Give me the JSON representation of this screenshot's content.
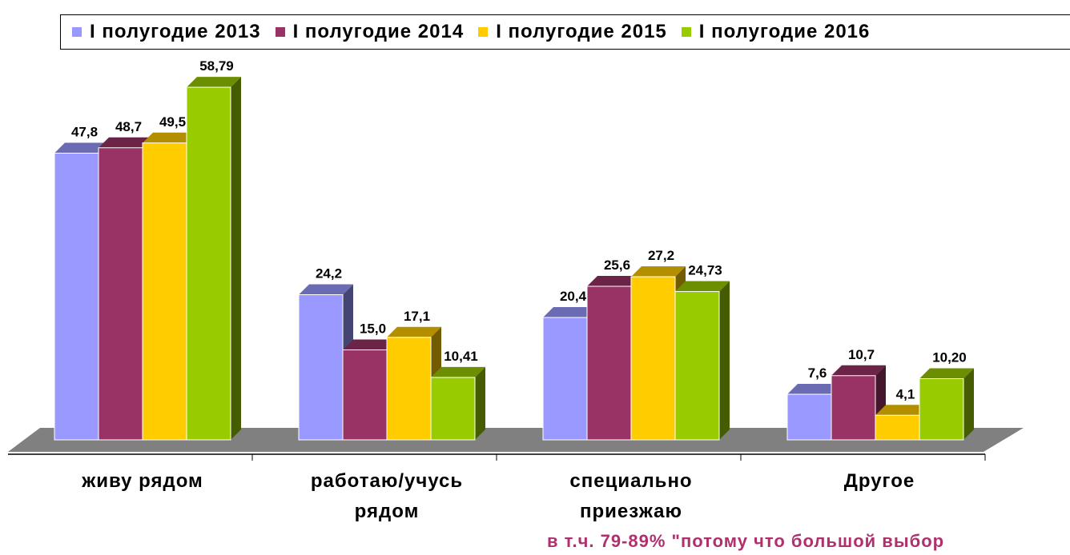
{
  "chart_data": {
    "type": "bar",
    "categories": [
      "живу рядом",
      "работаю/учусь рядом",
      "специально приезжаю",
      "Другое"
    ],
    "series": [
      {
        "name": "I полугодие 2013",
        "color": "#9999ff",
        "values": [
          47.8,
          24.2,
          20.4,
          7.6
        ],
        "value_labels": [
          "47,8",
          "24,2",
          "20,4",
          "7,6"
        ]
      },
      {
        "name": "I полугодие 2014",
        "color": "#993366",
        "values": [
          48.7,
          15.0,
          25.6,
          10.7
        ],
        "value_labels": [
          "48,7",
          "15,0",
          "25,6",
          "10,7"
        ]
      },
      {
        "name": "I полугодие 2015",
        "color": "#ffcc00",
        "values": [
          49.5,
          17.1,
          27.2,
          4.1
        ],
        "value_labels": [
          "49,5",
          "17,1",
          "27,2",
          "4,1"
        ]
      },
      {
        "name": "I полугодие 2016",
        "color": "#99cc00",
        "values": [
          58.79,
          10.41,
          24.73,
          10.2
        ],
        "value_labels": [
          "58,79",
          "10,41",
          "24,73",
          "10,20"
        ]
      }
    ],
    "annotation": "в т.ч. 79-89% \"потому что большой выбор",
    "legend": "top"
  }
}
